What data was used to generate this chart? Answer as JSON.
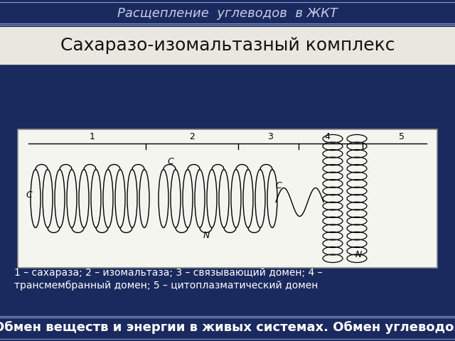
{
  "header_text": "Расщепление  углеводов  в ЖКТ",
  "header_bg": "#1a2a5e",
  "header_text_color": "#c8cce8",
  "title_text": "Сахаразо-изомальтазный комплекс",
  "body_bg": "#1a2a5e",
  "image_placeholder_bg": "#f5f5f0",
  "image_placeholder_border": "#888888",
  "caption_line1": "1 – сахараза; 2 – изомальтаза; 3 – связывающий домен; 4 –",
  "caption_line2": "трансмембранный домен; 5 – цитоплазматический домен",
  "footer_text": "Обмен веществ и энергии в живых системах. Обмен углеводов",
  "footer_bg": "#1a2a5e",
  "footer_text_color": "#ffffff",
  "footer_fontsize": 13,
  "separator_color": "#8899cc",
  "title_strip_bg": "#e8e8e0",
  "title_fontsize": 18,
  "fig_width": 6.4,
  "fig_height": 4.8,
  "dpi": 100
}
